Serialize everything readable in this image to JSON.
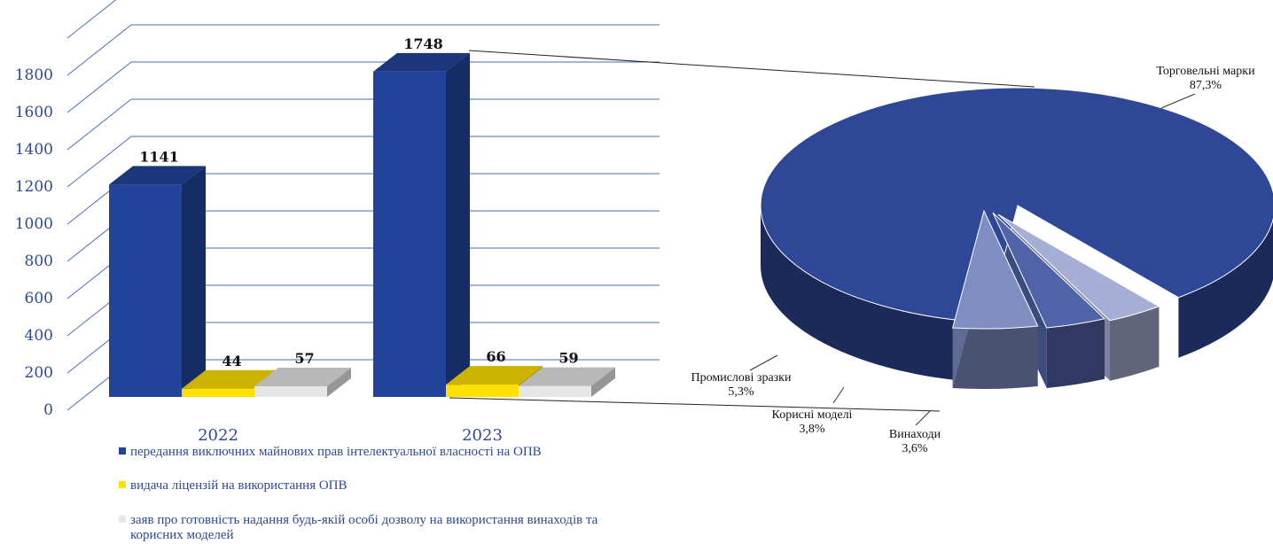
{
  "chart_data": [
    {
      "type": "bar",
      "categories": [
        "2022",
        "2023"
      ],
      "series": [
        {
          "name": "передання виключних майнових прав інтелектуальної власності на ОПВ",
          "values": [
            1141,
            1748
          ],
          "color": "#22439A"
        },
        {
          "name": "видача ліцензій на використання ОПВ",
          "values": [
            44,
            66
          ],
          "color": "#FFE000"
        },
        {
          "name": "заяв про готовність надання будь-якій особі дозволу на використання винаходів та корисних моделей",
          "values": [
            57,
            59
          ],
          "color": "#E6E6E6"
        }
      ],
      "y_ticks": [
        "0",
        "200",
        "400",
        "600",
        "800",
        "1000",
        "1200",
        "1400",
        "1600",
        "1800"
      ],
      "ylim": [
        0,
        2000
      ],
      "grid": true,
      "legend_position": "bottom"
    },
    {
      "type": "pie",
      "slices": [
        {
          "label": "Торговельні марки",
          "value": 87.3,
          "value_label": "87,3%",
          "color": "#2E4897"
        },
        {
          "label": "Винаходи",
          "value": 3.6,
          "value_label": "3,6%",
          "color": "#A5AED4"
        },
        {
          "label": "Корисні моделі",
          "value": 3.8,
          "value_label": "3,8%",
          "color": "#5163A8"
        },
        {
          "label": "Промислові зразки",
          "value": 5.3,
          "value_label": "5,3%",
          "color": "#7E8EC2"
        }
      ]
    }
  ]
}
